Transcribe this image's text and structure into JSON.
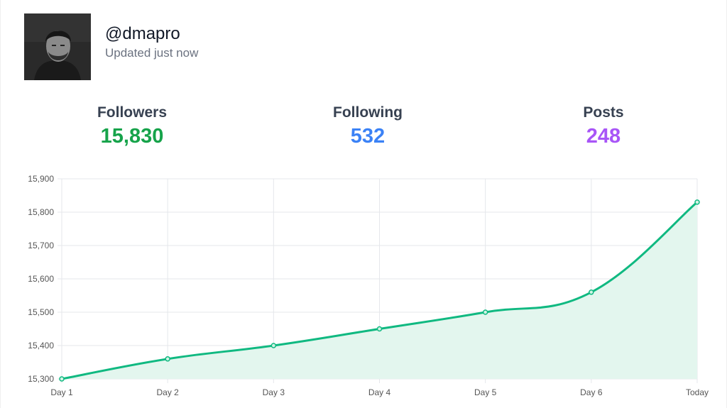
{
  "profile": {
    "username": "@dmapro",
    "updated": "Updated just now"
  },
  "stats": [
    {
      "label": "Followers",
      "value": "15,830",
      "color": "#16a34a"
    },
    {
      "label": "Following",
      "value": "532",
      "color": "#3b82f6"
    },
    {
      "label": "Posts",
      "value": "248",
      "color": "#a855f7"
    }
  ],
  "chart_data": {
    "type": "area",
    "x": [
      "Day 1",
      "Day 2",
      "Day 3",
      "Day 4",
      "Day 5",
      "Day 6",
      "Today"
    ],
    "values": [
      15300,
      15360,
      15400,
      15450,
      15500,
      15560,
      15830
    ],
    "ylim": [
      15300,
      15900
    ],
    "yticks": [
      "15,300",
      "15,400",
      "15,500",
      "15,600",
      "15,700",
      "15,800",
      "15,900"
    ],
    "grid": true,
    "line_color": "#10b981",
    "fill_color": "#e3f6ee"
  }
}
